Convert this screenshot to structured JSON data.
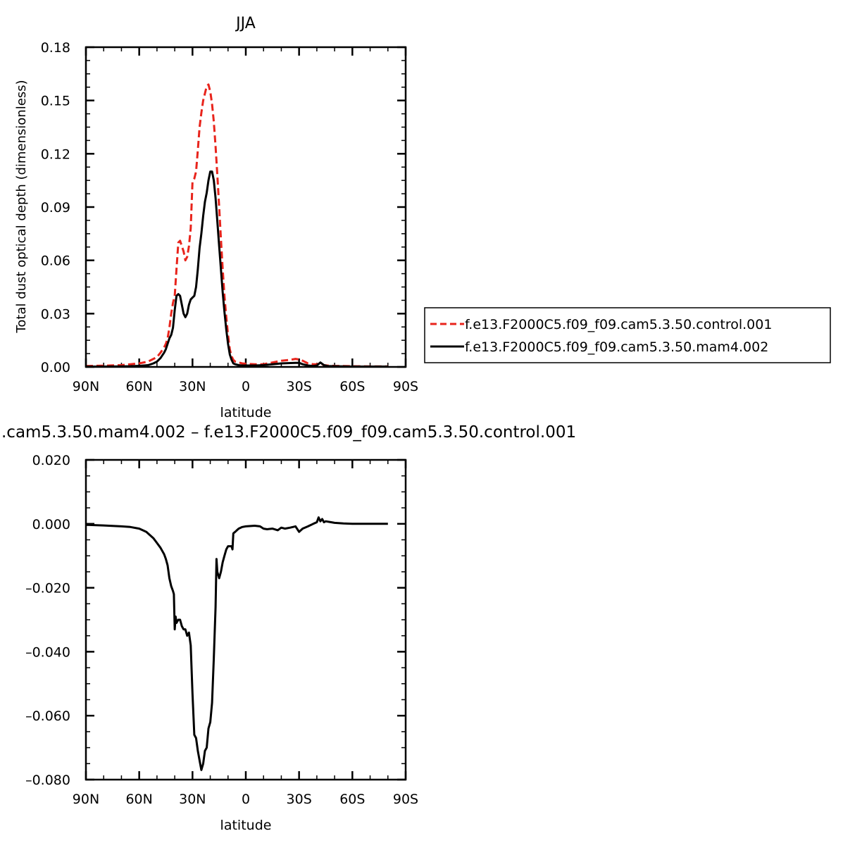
{
  "chart_data": [
    {
      "type": "line",
      "title": "JJA",
      "xlabel": "latitude",
      "ylabel": "Total dust optical depth (dimensionless)",
      "xlim": [
        90,
        -90
      ],
      "ylim": [
        0,
        0.18
      ],
      "x_ticks": [
        90,
        60,
        30,
        0,
        -30,
        -60,
        -90
      ],
      "x_tick_labels": [
        "90N",
        "60N",
        "30N",
        "0",
        "30S",
        "60S",
        "90S"
      ],
      "y_ticks": [
        0,
        0.03,
        0.06,
        0.09,
        0.12,
        0.15,
        0.18
      ],
      "y_tick_labels": [
        "0.00",
        "0.03",
        "0.06",
        "0.09",
        "0.12",
        "0.15",
        "0.18"
      ],
      "grid": false,
      "legend_position": "right",
      "series": [
        {
          "name": "f.e13.F2000C5.f09_f09.cam5.3.50.control.001",
          "color": "#e8241c",
          "dash": "dashed",
          "x": [
            90,
            80,
            70,
            65,
            60,
            55,
            52,
            50,
            48,
            46,
            45,
            44,
            43,
            42,
            41,
            40,
            39,
            38,
            37,
            36,
            35,
            34,
            33,
            32,
            31,
            30,
            29,
            28,
            27,
            26,
            25,
            24,
            23,
            22,
            21,
            20,
            19,
            18,
            17,
            16,
            15,
            14,
            13,
            12,
            11,
            10,
            9,
            8,
            7,
            6,
            4,
            2,
            0,
            -5,
            -10,
            -15,
            -20,
            -25,
            -28,
            -30,
            -32,
            -35,
            -38,
            -40,
            -42,
            -44,
            -46,
            -50,
            -55,
            -60,
            -70,
            -80
          ],
          "y": [
            0.0005,
            0.0007,
            0.001,
            0.0015,
            0.002,
            0.003,
            0.0045,
            0.0055,
            0.008,
            0.011,
            0.013,
            0.016,
            0.022,
            0.03,
            0.036,
            0.04,
            0.055,
            0.07,
            0.071,
            0.068,
            0.065,
            0.06,
            0.062,
            0.068,
            0.078,
            0.104,
            0.106,
            0.11,
            0.122,
            0.135,
            0.143,
            0.15,
            0.154,
            0.158,
            0.159,
            0.155,
            0.148,
            0.138,
            0.124,
            0.108,
            0.09,
            0.072,
            0.055,
            0.04,
            0.028,
            0.018,
            0.01,
            0.006,
            0.004,
            0.003,
            0.0025,
            0.002,
            0.0018,
            0.0015,
            0.0015,
            0.0025,
            0.0035,
            0.004,
            0.0045,
            0.0042,
            0.0035,
            0.002,
            0.0015,
            0.0015,
            0.002,
            0.001,
            0.0008,
            0.0006,
            0.0005,
            0.0004,
            0.0003,
            0.0003
          ]
        },
        {
          "name": "f.e13.F2000C5.f09_f09.cam5.3.50.mam4.002",
          "color": "#000000",
          "dash": "solid",
          "x": [
            90,
            80,
            70,
            65,
            60,
            55,
            52,
            50,
            48,
            46,
            45,
            44,
            43,
            42,
            41,
            40,
            39,
            38,
            37,
            36,
            35,
            34,
            33,
            32,
            31,
            30,
            29,
            28,
            27,
            26,
            25,
            24,
            23,
            22,
            21,
            20,
            19,
            18,
            17,
            16,
            15,
            14,
            13,
            12,
            11,
            10,
            9,
            8,
            7,
            6,
            4,
            2,
            0,
            -5,
            -10,
            -15,
            -20,
            -25,
            -28,
            -30,
            -32,
            -35,
            -38,
            -40,
            -42,
            -44,
            -46,
            -50,
            -55,
            -60,
            -70,
            -80
          ],
          "y": [
            0.0002,
            0.0002,
            0.0003,
            0.0004,
            0.0006,
            0.001,
            0.002,
            0.003,
            0.005,
            0.008,
            0.01,
            0.013,
            0.016,
            0.018,
            0.022,
            0.032,
            0.04,
            0.041,
            0.04,
            0.035,
            0.03,
            0.028,
            0.03,
            0.035,
            0.038,
            0.039,
            0.04,
            0.045,
            0.055,
            0.067,
            0.075,
            0.085,
            0.093,
            0.098,
            0.105,
            0.11,
            0.11,
            0.105,
            0.095,
            0.082,
            0.068,
            0.055,
            0.042,
            0.031,
            0.021,
            0.013,
            0.007,
            0.004,
            0.002,
            0.0015,
            0.001,
            0.0008,
            0.0008,
            0.0008,
            0.001,
            0.0015,
            0.002,
            0.0022,
            0.0023,
            0.0023,
            0.0015,
            0.0008,
            0.0005,
            0.0008,
            0.0025,
            0.001,
            0.0005,
            0.0004,
            0.0003,
            0.0002,
            0.0002,
            0.0002
          ]
        }
      ]
    },
    {
      "type": "line",
      "title": ".cam5.3.50.mam4.002 – f.e13.F2000C5.f09_f09.cam5.3.50.control.001",
      "xlabel": "latitude",
      "ylabel": "",
      "xlim": [
        90,
        -90
      ],
      "ylim": [
        -0.08,
        0.02
      ],
      "x_ticks": [
        90,
        60,
        30,
        0,
        -30,
        -60,
        -90
      ],
      "x_tick_labels": [
        "90N",
        "60N",
        "30N",
        "0",
        "30S",
        "60S",
        "90S"
      ],
      "y_ticks": [
        -0.08,
        -0.06,
        -0.04,
        -0.02,
        0,
        0.02
      ],
      "y_tick_labels": [
        "–0.080",
        "–0.060",
        "–0.040",
        "–0.020",
        "0.000",
        "0.020"
      ],
      "grid": false,
      "series": [
        {
          "color": "#000000",
          "dash": "solid",
          "x": [
            90,
            80,
            70,
            65,
            60,
            58,
            56,
            54,
            52,
            50,
            48,
            46,
            45,
            44,
            43,
            42,
            41,
            40.5,
            40,
            39.5,
            39,
            38,
            37,
            36,
            35,
            34,
            33,
            32,
            31,
            30,
            29,
            28,
            27,
            26,
            25,
            24,
            23,
            22,
            21,
            20,
            19,
            18,
            17,
            16.5,
            16,
            15,
            14,
            13,
            12,
            11,
            10,
            9,
            8,
            7.5,
            7,
            6,
            5,
            4,
            2,
            0,
            -5,
            -8,
            -10,
            -12,
            -15,
            -18,
            -20,
            -22,
            -25,
            -28,
            -30,
            -32,
            -35,
            -38,
            -40,
            -41,
            -42,
            -43,
            -44,
            -45,
            -48,
            -50,
            -55,
            -60,
            -70,
            -80
          ],
          "y": [
            -0.0003,
            -0.0005,
            -0.0008,
            -0.001,
            -0.0015,
            -0.002,
            -0.0025,
            -0.0035,
            -0.0045,
            -0.006,
            -0.0075,
            -0.0095,
            -0.011,
            -0.013,
            -0.017,
            -0.0195,
            -0.021,
            -0.022,
            -0.033,
            -0.029,
            -0.031,
            -0.03,
            -0.03,
            -0.032,
            -0.033,
            -0.033,
            -0.035,
            -0.034,
            -0.038,
            -0.053,
            -0.066,
            -0.067,
            -0.071,
            -0.074,
            -0.077,
            -0.075,
            -0.071,
            -0.07,
            -0.064,
            -0.062,
            -0.056,
            -0.042,
            -0.026,
            -0.011,
            -0.015,
            -0.017,
            -0.015,
            -0.012,
            -0.01,
            -0.008,
            -0.007,
            -0.007,
            -0.007,
            -0.008,
            -0.003,
            -0.0025,
            -0.002,
            -0.0015,
            -0.001,
            -0.0008,
            -0.0006,
            -0.0008,
            -0.0015,
            -0.0017,
            -0.0015,
            -0.002,
            -0.0012,
            -0.0015,
            -0.0012,
            -0.0008,
            -0.0025,
            -0.0015,
            -0.0008,
            0,
            0.0005,
            0.002,
            0.0008,
            0.0015,
            0.0005,
            0.0008,
            0.0005,
            0.0003,
            0.0001,
            0,
            0,
            0
          ]
        }
      ]
    }
  ]
}
